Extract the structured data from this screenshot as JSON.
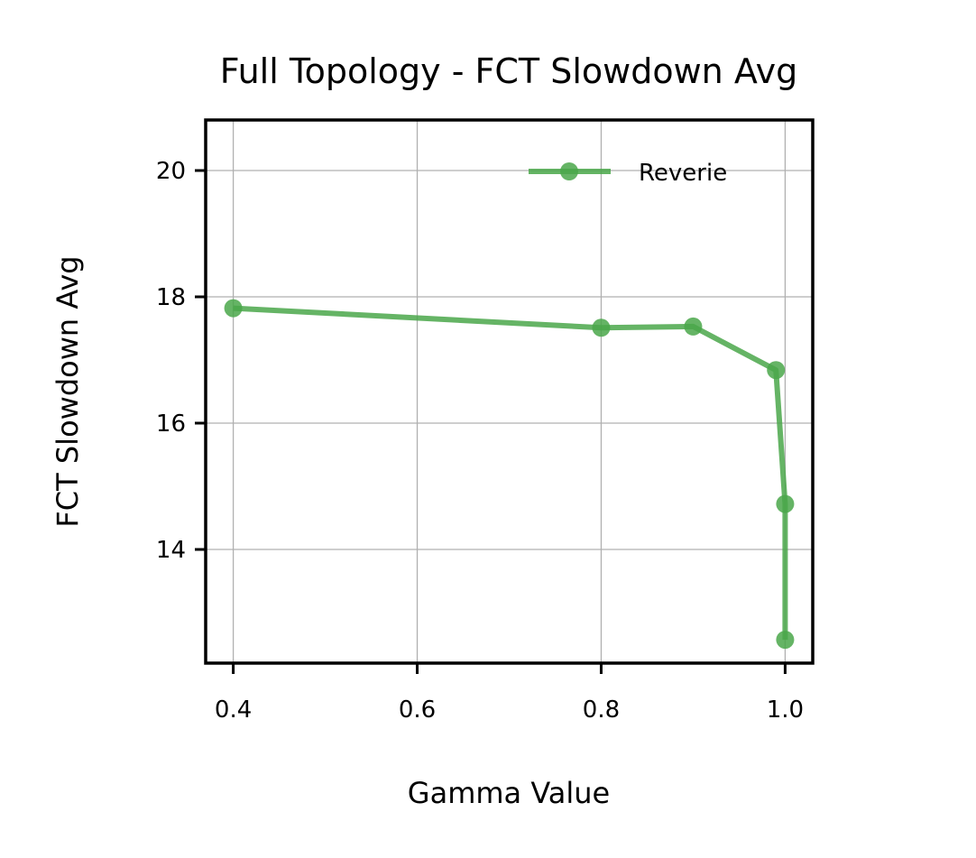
{
  "chart_data": {
    "type": "line",
    "title": "Full Topology - FCT Slowdown Avg",
    "xlabel": "Gamma Value",
    "ylabel": "FCT Slowdown Avg",
    "xlim": [
      0.37,
      1.03
    ],
    "ylim": [
      12.2,
      20.8
    ],
    "xticks": [
      0.4,
      0.6,
      0.8,
      1.0
    ],
    "xtick_labels": [
      "0.4",
      "0.6",
      "0.8",
      "1.0"
    ],
    "yticks": [
      14,
      16,
      18,
      20
    ],
    "ytick_labels": [
      "14",
      "16",
      "18",
      "20"
    ],
    "grid": true,
    "legend_position": "top-right",
    "series": [
      {
        "name": "Reverie",
        "color": "#4aa74a",
        "marker": "circle",
        "x": [
          0.4,
          0.8,
          0.9,
          0.99,
          1.0,
          1.0
        ],
        "y": [
          17.82,
          17.51,
          17.53,
          16.84,
          14.72,
          12.57
        ]
      }
    ]
  }
}
